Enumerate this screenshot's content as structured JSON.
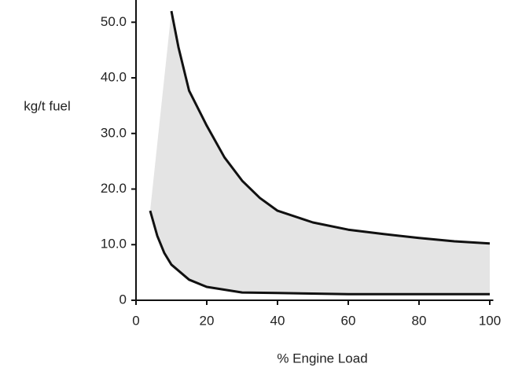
{
  "chart_data": {
    "type": "line",
    "y_label": "kg/t fuel",
    "x_label": "% Engine Load",
    "xlim": [
      0,
      101
    ],
    "xticks": [
      0,
      20,
      40,
      60,
      80,
      100
    ],
    "ylim": [
      0,
      54
    ],
    "yticks": [
      0,
      {
        "value": 10,
        "label": "10.0"
      },
      {
        "value": 20,
        "label": "20.0"
      },
      {
        "value": 30,
        "label": "30.0"
      },
      {
        "value": 40,
        "label": "40.0"
      },
      {
        "value": 50,
        "label": "50.0"
      }
    ],
    "fill_between": true,
    "fill_color": "#e4e4e4",
    "series": [
      {
        "color": "#111111",
        "x": [
          10,
          12,
          15,
          20,
          25,
          30,
          35,
          40,
          50,
          60,
          70,
          80,
          90,
          100
        ],
        "values": [
          52,
          45.5,
          37.7,
          31.4,
          25.7,
          21.5,
          18.4,
          16.1,
          14,
          12.7,
          11.9,
          11.2,
          10.6,
          10.2
        ]
      },
      {
        "color": "#111111",
        "x": [
          4,
          6,
          8,
          10,
          15,
          20,
          30,
          40,
          60,
          80,
          100
        ],
        "values": [
          16.1,
          11.6,
          8.5,
          6.4,
          3.7,
          2.4,
          1.4,
          1.3,
          1.1,
          1.1,
          1.1
        ]
      }
    ]
  }
}
